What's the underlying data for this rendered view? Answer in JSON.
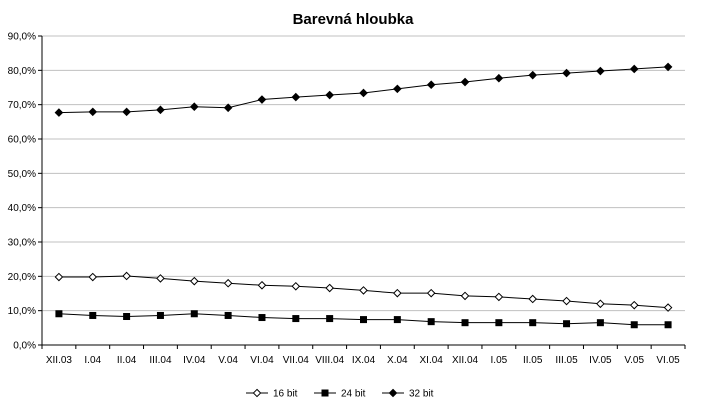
{
  "chart_data": {
    "type": "line",
    "title": "Barevná hloubka",
    "xlabel": "",
    "ylabel": "",
    "categories": [
      "XII.03",
      "I.04",
      "II.04",
      "III.04",
      "IV.04",
      "V.04",
      "VI.04",
      "VII.04",
      "VIII.04",
      "IX.04",
      "X.04",
      "XI.04",
      "XII.04",
      "I.05",
      "II.05",
      "III.05",
      "IV.05",
      "V.05",
      "VI.05"
    ],
    "ylim": [
      0,
      90
    ],
    "yticks": [
      0,
      10,
      20,
      30,
      40,
      50,
      60,
      70,
      80,
      90
    ],
    "ytick_labels": [
      "0,0%",
      "10,0%",
      "20,0%",
      "30,0%",
      "40,0%",
      "50,0%",
      "60,0%",
      "70,0%",
      "80,0%",
      "90,0%"
    ],
    "grid": true,
    "legend_position": "bottom",
    "series": [
      {
        "name": "16 bit",
        "marker": "diamond-open",
        "color": "#000000",
        "values": [
          19.8,
          19.8,
          20.1,
          19.4,
          18.6,
          18.0,
          17.4,
          17.1,
          16.6,
          15.9,
          15.1,
          15.1,
          14.3,
          14.0,
          13.4,
          12.8,
          12.0,
          11.6,
          10.9
        ]
      },
      {
        "name": "24 bit",
        "marker": "square",
        "color": "#000000",
        "values": [
          9.1,
          8.6,
          8.3,
          8.6,
          9.1,
          8.6,
          8.0,
          7.7,
          7.7,
          7.4,
          7.4,
          6.8,
          6.5,
          6.5,
          6.5,
          6.2,
          6.5,
          5.9,
          5.9
        ]
      },
      {
        "name": "32 bit",
        "marker": "diamond-filled",
        "color": "#000000",
        "values": [
          67.7,
          67.9,
          67.9,
          68.5,
          69.4,
          69.1,
          71.5,
          72.2,
          72.8,
          73.4,
          74.6,
          75.8,
          76.6,
          77.7,
          78.6,
          79.2,
          79.8,
          80.4,
          81.0
        ]
      }
    ]
  }
}
